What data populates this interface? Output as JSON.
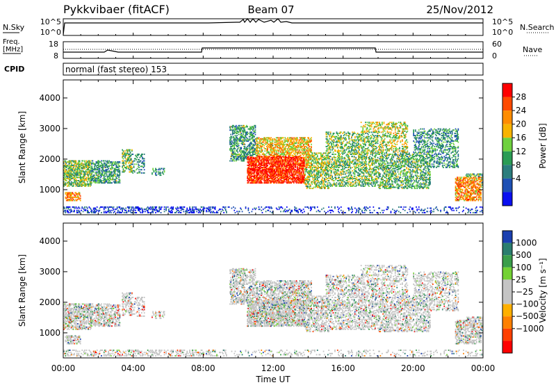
{
  "header": {
    "station": "Pykkvibaer (fitACF)",
    "beam": "Beam 07",
    "date": "25/Nov/2012"
  },
  "params": {
    "nsky_label": "N.Sky",
    "nsearch_label": "N.Search",
    "freq_label_1": "Freq.",
    "freq_label_2": "[MHz]",
    "nave_label": "Nave",
    "cpid_label": "CPID",
    "cpid_text": "normal (fast stereo) 153",
    "noise_ticks": [
      "10^5",
      "10^0"
    ],
    "freq_ticks": [
      "18",
      "8"
    ],
    "nave_ticks": [
      "60",
      "0"
    ]
  },
  "chart_data": [
    {
      "type": "heatmap",
      "name": "power",
      "ylabel": "Slant Range [km]",
      "yticks": [
        "4000",
        "3000",
        "2000",
        "1000"
      ],
      "ytick_values": [
        4000,
        3000,
        2000,
        1000
      ],
      "ylim": [
        180,
        4590
      ],
      "xlim": [
        0,
        24
      ],
      "xticks": [
        "00:00",
        "04:00",
        "08:00",
        "12:00",
        "16:00",
        "20:00",
        "00:00"
      ],
      "colorbar_label": "Power [dB]",
      "colorbar_ticks": [
        "28",
        "24",
        "20",
        "16",
        "12",
        "8",
        "4"
      ],
      "colorbar_colors": [
        "#ff0000",
        "#ff4a00",
        "#ff8c00",
        "#f8b300",
        "#6fd13e",
        "#2a9c55",
        "#2b7d7d",
        "#1e50b4",
        "#0a0ff0"
      ]
    },
    {
      "type": "heatmap",
      "name": "velocity",
      "ylabel": "Slant Range [km]",
      "yticks": [
        "4000",
        "3000",
        "2000",
        "1000"
      ],
      "ytick_values": [
        4000,
        3000,
        2000,
        1000
      ],
      "ylim": [
        180,
        4590
      ],
      "xlim": [
        0,
        24
      ],
      "xticks": [
        "00:00",
        "04:00",
        "08:00",
        "12:00",
        "16:00",
        "20:00",
        "00:00"
      ],
      "xlabel": "Time UT",
      "colorbar_label": "Velocity [m s⁻¹]",
      "colorbar_ticks": [
        "1000",
        "500",
        "100",
        "25",
        "−25",
        "−100",
        "−500",
        "−1000"
      ],
      "colorbar_colors": [
        "#1a3fb0",
        "#2a7d6e",
        "#3a9e4a",
        "#74d234",
        "#c4c4c4",
        "#c4c4c4",
        "#ffb000",
        "#ff8000",
        "#ff4000",
        "#ff0000"
      ]
    }
  ]
}
